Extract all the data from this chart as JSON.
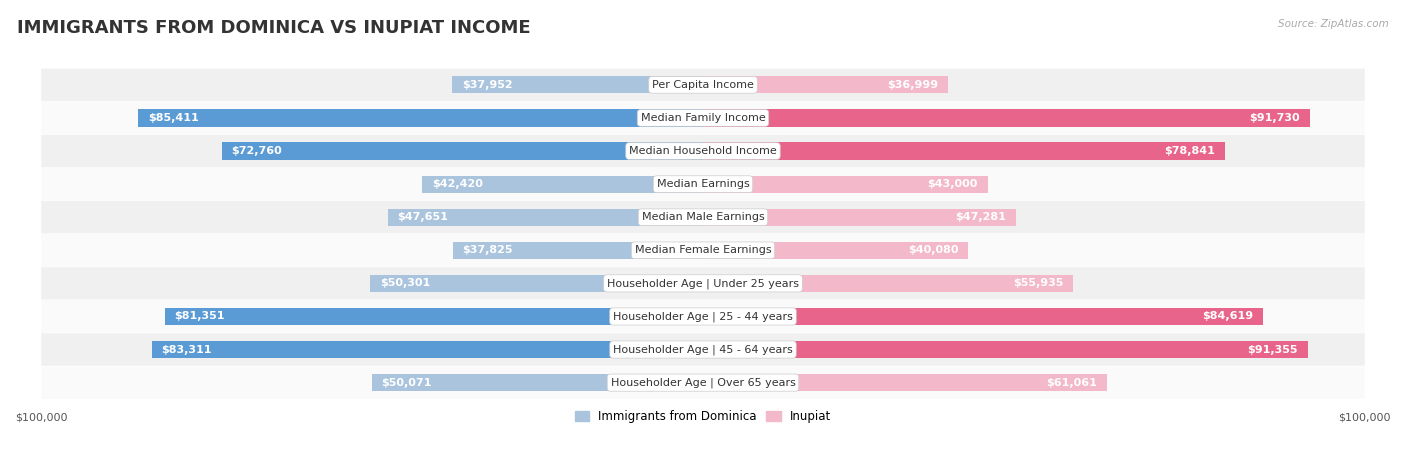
{
  "title": "IMMIGRANTS FROM DOMINICA VS INUPIAT INCOME",
  "source": "Source: ZipAtlas.com",
  "categories": [
    "Per Capita Income",
    "Median Family Income",
    "Median Household Income",
    "Median Earnings",
    "Median Male Earnings",
    "Median Female Earnings",
    "Householder Age | Under 25 years",
    "Householder Age | 25 - 44 years",
    "Householder Age | 45 - 64 years",
    "Householder Age | Over 65 years"
  ],
  "dominica_values": [
    37952,
    85411,
    72760,
    42420,
    47651,
    37825,
    50301,
    81351,
    83311,
    50071
  ],
  "inupiat_values": [
    36999,
    91730,
    78841,
    43000,
    47281,
    40080,
    55935,
    84619,
    91355,
    61061
  ],
  "dominica_labels": [
    "$37,952",
    "$85,411",
    "$72,760",
    "$42,420",
    "$47,651",
    "$37,825",
    "$50,301",
    "$81,351",
    "$83,311",
    "$50,071"
  ],
  "inupiat_labels": [
    "$36,999",
    "$91,730",
    "$78,841",
    "$43,000",
    "$47,281",
    "$40,080",
    "$55,935",
    "$84,619",
    "$91,355",
    "$61,061"
  ],
  "dominica_color_light": "#aac4de",
  "dominica_color_dark": "#5b9bd5",
  "inupiat_color_light": "#f4b8cb",
  "inupiat_color_dark": "#e8648a",
  "max_value": 100000,
  "bar_height": 0.52,
  "row_colors": [
    "#f0f0f0",
    "#fafafa"
  ],
  "title_fontsize": 13,
  "label_fontsize": 8.0,
  "category_fontsize": 8.0,
  "legend_fontsize": 8.5,
  "axis_fontsize": 8.0,
  "inner_label_threshold": 0.3,
  "dominica_dark_rows": [
    1,
    2,
    7,
    8
  ],
  "inupiat_dark_rows": [
    1,
    2,
    7,
    8
  ]
}
